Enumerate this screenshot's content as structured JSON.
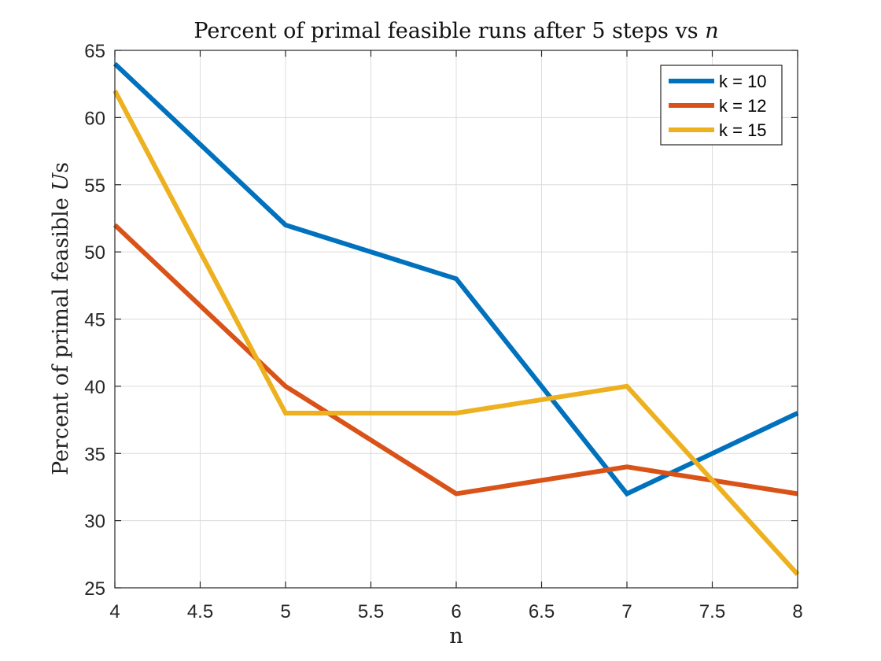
{
  "chart_data": {
    "type": "line",
    "title": "Percent of primal feasible runs after 5 steps vs",
    "title_var": "n",
    "xlabel": "n",
    "ylabel_prefix": "Percent of primal feasible",
    "ylabel_var": "U",
    "ylabel_suffix": "s",
    "xlim": [
      4,
      8
    ],
    "ylim": [
      25,
      65
    ],
    "xticks": [
      4,
      4.5,
      5,
      5.5,
      6,
      6.5,
      7,
      7.5,
      8
    ],
    "xtick_labels": [
      "4",
      "4.5",
      "5",
      "5.5",
      "6",
      "6.5",
      "7",
      "7.5",
      "8"
    ],
    "yticks": [
      25,
      30,
      35,
      40,
      45,
      50,
      55,
      60,
      65
    ],
    "ytick_labels": [
      "25",
      "30",
      "35",
      "40",
      "45",
      "50",
      "55",
      "60",
      "65"
    ],
    "grid": true,
    "legend_position": "top-right",
    "x": [
      4,
      5,
      6,
      7,
      8
    ],
    "series": [
      {
        "name": "k = 10",
        "color": "#0072BD",
        "values": [
          64,
          52,
          48,
          32,
          38
        ]
      },
      {
        "name": "k = 12",
        "color": "#D95319",
        "values": [
          52,
          40,
          32,
          34,
          32
        ]
      },
      {
        "name": "k = 15",
        "color": "#EDB120",
        "values": [
          62,
          38,
          38,
          40,
          26
        ]
      }
    ]
  }
}
